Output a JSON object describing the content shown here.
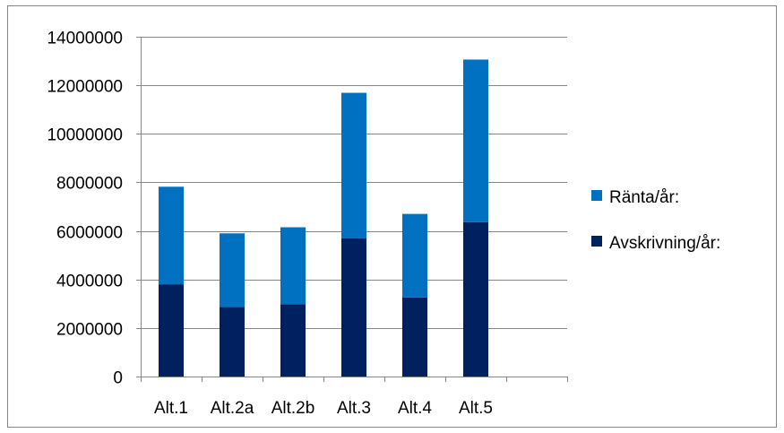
{
  "chart_data": {
    "type": "bar",
    "stacked": true,
    "categories": [
      "Alt.1",
      "Alt.2a",
      "Alt.2b",
      "Alt.3",
      "Alt.4",
      "Alt.5",
      ""
    ],
    "series": [
      {
        "name": "Avskrivning/år:",
        "color": "#002060",
        "values": [
          3800000,
          2870000,
          2980000,
          5690000,
          3260000,
          6360000,
          null
        ]
      },
      {
        "name": "Ränta/år:",
        "color": "#0070C0",
        "values": [
          4020000,
          3030000,
          3170000,
          6000000,
          3440000,
          6700000,
          null
        ]
      }
    ],
    "legend": {
      "placement": "right",
      "order": [
        "Ränta/år:",
        "Avskrivning/år:"
      ]
    },
    "yticks": [
      "0",
      "2000000",
      "4000000",
      "6000000",
      "8000000",
      "10000000",
      "12000000",
      "14000000"
    ],
    "ylim": [
      0,
      14000000
    ],
    "grid": true,
    "title": "",
    "xlabel": "",
    "ylabel": ""
  }
}
